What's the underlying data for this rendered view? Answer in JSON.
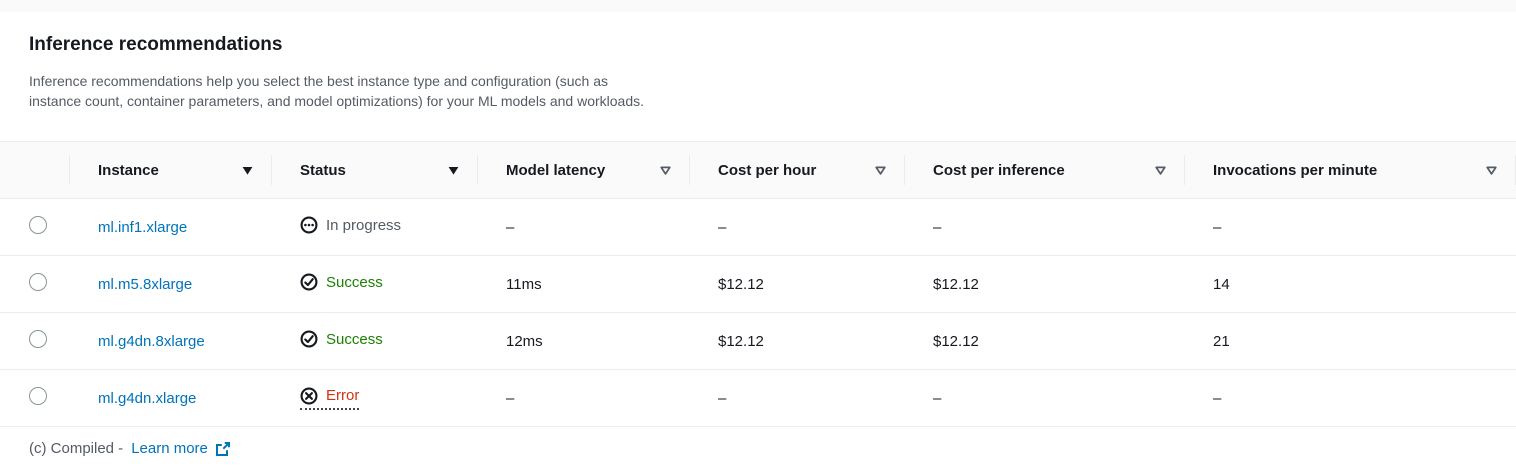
{
  "header": {
    "title": "Inference recommendations",
    "description_lines": [
      "Inference recommendations help you select the best instance type and configuration (such as",
      "instance count, container parameters, and model optimizations) for your ML models and workloads."
    ]
  },
  "table": {
    "columns": [
      {
        "label": "",
        "sort_style": "none"
      },
      {
        "label": "Instance",
        "sort_style": "filled"
      },
      {
        "label": "Status",
        "sort_style": "filled"
      },
      {
        "label": "Model latency",
        "sort_style": "outline"
      },
      {
        "label": "Cost per hour",
        "sort_style": "outline"
      },
      {
        "label": "Cost per inference",
        "sort_style": "outline"
      },
      {
        "label": "Invocations per minute",
        "sort_style": "outline"
      }
    ],
    "rows": [
      {
        "instance": "ml.inf1.xlarge",
        "status": {
          "type": "in-progress",
          "label": "In progress",
          "underlined": false
        },
        "model_latency": "–",
        "cost_per_hour": "–",
        "cost_per_inference": "–",
        "invocations_per_minute": "–"
      },
      {
        "instance": "ml.m5.8xlarge",
        "status": {
          "type": "success",
          "label": "Success",
          "underlined": false
        },
        "model_latency": "11ms",
        "cost_per_hour": "$12.12",
        "cost_per_inference": "$12.12",
        "invocations_per_minute": "14"
      },
      {
        "instance": "ml.g4dn.8xlarge",
        "status": {
          "type": "success",
          "label": "Success",
          "underlined": false
        },
        "model_latency": "12ms",
        "cost_per_hour": "$12.12",
        "cost_per_inference": "$12.12",
        "invocations_per_minute": "21"
      },
      {
        "instance": "ml.g4dn.xlarge",
        "status": {
          "type": "error",
          "label": "Error",
          "underlined": true
        },
        "model_latency": "–",
        "cost_per_hour": "–",
        "cost_per_inference": "–",
        "invocations_per_minute": "–"
      }
    ]
  },
  "footer": {
    "text": "(c) Compiled -",
    "link_label": "Learn more",
    "link_icon": "external-link-icon"
  },
  "colors": {
    "text": "#16191f",
    "secondary-text": "#545b64",
    "link": "#0073bb",
    "success": "#1d8102",
    "error": "#d13212",
    "header-bg": "#fafafa",
    "page-bg": "#fafafa",
    "border": "#eaeded",
    "radio-border": "#879596",
    "icon": "#16191f",
    "tooltip-underline": "#424650"
  }
}
